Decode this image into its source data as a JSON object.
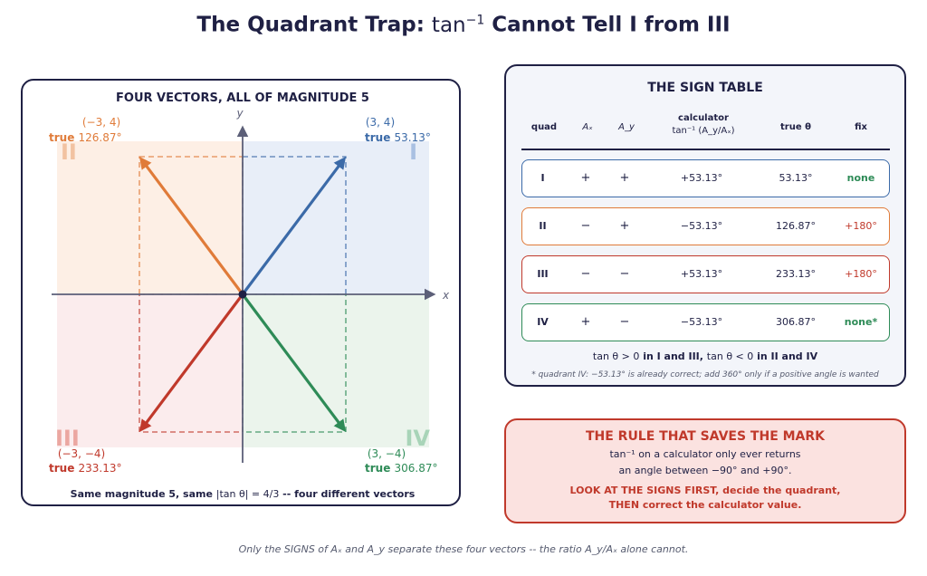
{
  "title": {
    "prefix": "The Quadrant Trap: ",
    "math_func": "tan",
    "math_exp": "−1",
    "suffix": " Cannot Tell I from III"
  },
  "diagram": {
    "title": "FOUR VECTORS, ALL OF MAGNITUDE 5",
    "axis_x": "x",
    "axis_y": "y",
    "caption_prefix": "Same magnitude 5, same ",
    "caption_math": "|tan θ| = 4/3",
    "caption_suffix": " -- four different vectors",
    "true_word": "true",
    "vectors": [
      {
        "quadrant": "I",
        "x": 3,
        "y": 4,
        "coord": "(3, 4)",
        "angle": "53.13°",
        "color": "#3b6aa8",
        "fill": "#e8eef8",
        "roman_color": "#a9c0e2"
      },
      {
        "quadrant": "II",
        "x": -3,
        "y": 4,
        "coord": "(−3, 4)",
        "angle": "126.87°",
        "color": "#e07b39",
        "fill": "#fdefe5",
        "roman_color": "#f2c2a1"
      },
      {
        "quadrant": "III",
        "x": -3,
        "y": -4,
        "coord": "(−3, −4)",
        "angle": "233.13°",
        "color": "#c0392b",
        "fill": "#fbeced",
        "roman_color": "#eba7a1"
      },
      {
        "quadrant": "IV",
        "x": 3,
        "y": -4,
        "coord": "(3, −4)",
        "angle": "306.87°",
        "color": "#2e8b57",
        "fill": "#ebf4ec",
        "roman_color": "#a8d4b8"
      }
    ]
  },
  "sign_table": {
    "title": "THE SIGN TABLE",
    "headers": {
      "quad": "quad",
      "ax": "Aₓ",
      "ay": "A_y",
      "calc_line1": "calculator",
      "calc_line2": "tan⁻¹ (A_y/Aₓ)",
      "true": "true θ",
      "fix": "fix"
    },
    "rows": [
      {
        "quad": "I",
        "ax": "+",
        "ay": "+",
        "calc": "+53.13°",
        "true": "53.13°",
        "fix": "none",
        "border": "#3b6aa8",
        "fix_color": "#2e8b57",
        "fix_bold": true
      },
      {
        "quad": "II",
        "ax": "−",
        "ay": "+",
        "calc": "−53.13°",
        "true": "126.87°",
        "fix": "+180°",
        "border": "#e07b39",
        "fix_color": "#c0392b",
        "fix_bold": false
      },
      {
        "quad": "III",
        "ax": "−",
        "ay": "−",
        "calc": "+53.13°",
        "true": "233.13°",
        "fix": "+180°",
        "border": "#c0392b",
        "fix_color": "#c0392b",
        "fix_bold": false
      },
      {
        "quad": "IV",
        "ax": "+",
        "ay": "−",
        "calc": "−53.13°",
        "true": "306.87°",
        "fix": "none*",
        "border": "#2e8b57",
        "fix_color": "#2e8b57",
        "fix_bold": true
      }
    ],
    "footer_a": "tan θ > 0",
    "footer_b": " in I and III,  ",
    "footer_c": "tan θ < 0",
    "footer_d": " in II and IV",
    "note": "* quadrant IV: −53.13° is already correct; add 360° only if a positive angle is wanted"
  },
  "rule": {
    "title": "THE RULE THAT SAVES THE MARK",
    "line1": "tan⁻¹  on a calculator only ever returns",
    "line2": "an angle between −90° and +90°.",
    "bold1": "LOOK AT THE SIGNS FIRST, decide the quadrant,",
    "bold2": "THEN correct the calculator value."
  },
  "caption": "Only the SIGNS of Aₓ and A_y separate these four vectors -- the ratio A_y/Aₓ alone cannot."
}
